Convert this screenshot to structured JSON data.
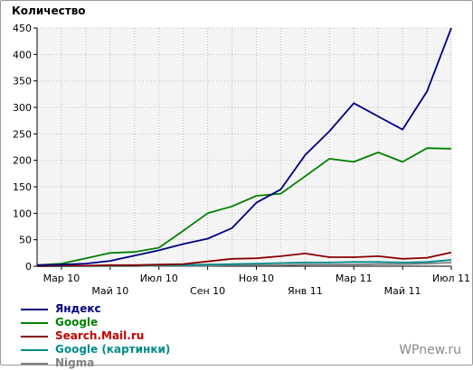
{
  "chart_data": {
    "type": "line",
    "ylabel": "Количество",
    "ylim": [
      0,
      450
    ],
    "yticks": [
      0,
      50,
      100,
      150,
      200,
      250,
      300,
      350,
      400,
      450
    ],
    "x": [
      0,
      1,
      2,
      3,
      4,
      5,
      6,
      7,
      8,
      9,
      10,
      11,
      12,
      13,
      14,
      15,
      16,
      17
    ],
    "xlim": [
      0,
      17
    ],
    "xtick_positions": [
      1,
      3,
      5,
      7,
      9,
      11,
      13,
      15,
      17
    ],
    "xtick_labels": [
      "Мар 10",
      "Май 10",
      "Июл 10",
      "Сен 10",
      "Ноя 10",
      "Янв 11",
      "Мар 11",
      "Май 11",
      "Июл 11"
    ],
    "grid": true,
    "legend_position": "bottom-left",
    "series": [
      {
        "name": "Яндекс",
        "color": "#000080",
        "values": [
          2,
          3,
          5,
          10,
          20,
          30,
          42,
          52,
          72,
          120,
          145,
          210,
          255,
          308,
          283,
          258,
          330,
          450
        ]
      },
      {
        "name": "Google",
        "color": "#008000",
        "values": [
          2,
          5,
          15,
          25,
          27,
          35,
          67,
          100,
          113,
          133,
          137,
          170,
          203,
          197,
          215,
          197,
          223,
          222
        ]
      },
      {
        "name": "Search.Mail.ru",
        "color": "#8b0000",
        "values": [
          0,
          1,
          1,
          2,
          2,
          3,
          4,
          9,
          14,
          15,
          19,
          24,
          17,
          17,
          19,
          14,
          16,
          26
        ]
      },
      {
        "name": "Google (картинки)",
        "color": "#008b8b",
        "values": [
          0,
          0,
          1,
          1,
          1,
          2,
          2,
          3,
          4,
          5,
          6,
          7,
          7,
          8,
          8,
          7,
          8,
          12
        ]
      },
      {
        "name": "Nigma",
        "color": "#808080",
        "values": [
          0,
          0,
          0,
          0,
          0,
          1,
          1,
          1,
          2,
          2,
          2,
          3,
          3,
          3,
          4,
          4,
          5,
          7
        ]
      }
    ]
  },
  "watermark": "WPnew.ru"
}
